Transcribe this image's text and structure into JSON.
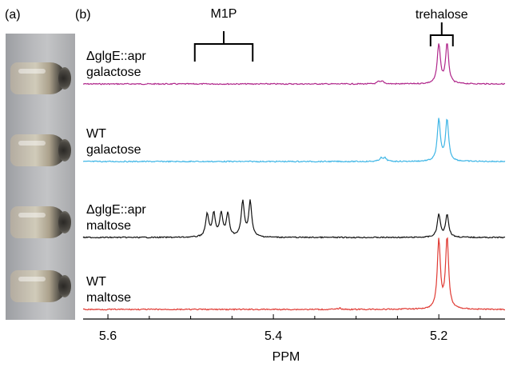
{
  "panels": {
    "a_label": "(a)",
    "b_label": "(b)"
  },
  "photo": {
    "vials": [
      "vial-1",
      "vial-2",
      "vial-3",
      "vial-4"
    ]
  },
  "chart_data": {
    "type": "line",
    "xlabel": "PPM",
    "xlim": [
      5.63,
      5.12
    ],
    "x_reversed": true,
    "x_ticks": [
      5.6,
      5.4,
      5.2
    ],
    "x_tick_labels": [
      "5.6",
      "5.4",
      "5.2"
    ],
    "annotations": [
      {
        "text": "M1P",
        "x_from": 5.495,
        "x_to": 5.425
      },
      {
        "text": "trehalose",
        "x_from": 5.21,
        "x_to": 5.183
      }
    ],
    "series": [
      {
        "label_lines": [
          "ΔglgE::apr",
          "galactose"
        ],
        "color": "#b0278b",
        "peaks": [
          {
            "ppm": 5.2,
            "height": 0.95
          },
          {
            "ppm": 5.19,
            "height": 0.95
          },
          {
            "ppm": 5.268,
            "height": 0.06
          },
          {
            "ppm": 5.273,
            "height": 0.05
          }
        ]
      },
      {
        "label_lines": [
          "WT",
          "galactose"
        ],
        "color": "#3fb6e6",
        "peaks": [
          {
            "ppm": 5.2,
            "height": 1.0
          },
          {
            "ppm": 5.19,
            "height": 1.0
          },
          {
            "ppm": 5.265,
            "height": 0.08
          },
          {
            "ppm": 5.27,
            "height": 0.08
          }
        ]
      },
      {
        "label_lines": [
          "ΔglgE::apr",
          "maltose"
        ],
        "color": "#111111",
        "peaks": [
          {
            "ppm": 5.48,
            "height": 0.55
          },
          {
            "ppm": 5.472,
            "height": 0.55
          },
          {
            "ppm": 5.463,
            "height": 0.55
          },
          {
            "ppm": 5.455,
            "height": 0.55
          },
          {
            "ppm": 5.437,
            "height": 0.85
          },
          {
            "ppm": 5.428,
            "height": 0.85
          },
          {
            "ppm": 5.2,
            "height": 0.55
          },
          {
            "ppm": 5.19,
            "height": 0.55
          }
        ]
      },
      {
        "label_lines": [
          "WT",
          "maltose"
        ],
        "color": "#e03a33",
        "peaks": [
          {
            "ppm": 5.2,
            "height": 1.65
          },
          {
            "ppm": 5.19,
            "height": 1.7
          },
          {
            "ppm": 5.32,
            "height": 0.03
          },
          {
            "ppm": 5.24,
            "height": 0.02
          }
        ]
      }
    ]
  }
}
